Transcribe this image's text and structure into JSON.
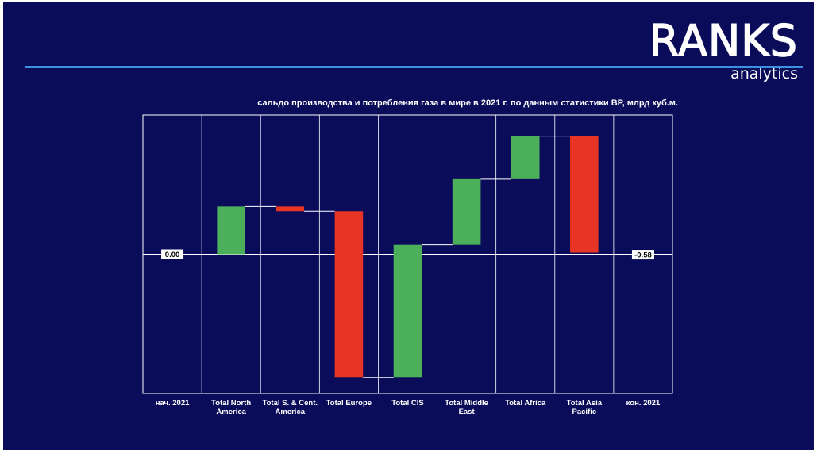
{
  "brand": {
    "name": "RANKS",
    "tagline": "analytics",
    "accent_color": "#3d8fe0",
    "background_color": "#0a0c5a"
  },
  "chart_data": {
    "type": "waterfall",
    "title": "сальдо производства и потребления газа в мире в 2021 г. по данным статистики BP, млрд куб.м.",
    "xlabel": "",
    "ylabel": "",
    "categories": [
      "нач. 2021",
      "Total North America",
      "Total S. & Cent. America",
      "Total Europe",
      "Total CIS",
      "Total Middle East",
      "Total Africa",
      "Total Asia Pacific",
      "кон. 2021"
    ],
    "category_lines": [
      [
        "нач. 2021"
      ],
      [
        "Total North",
        "America"
      ],
      [
        "Total S. & Cent.",
        "America"
      ],
      [
        "Total Europe"
      ],
      [
        "Total CIS"
      ],
      [
        "Total Middle",
        "East"
      ],
      [
        "Total Africa"
      ],
      [
        "Total Asia",
        "Pacific"
      ],
      [
        "кон. 2021"
      ]
    ],
    "deltas": [
      null,
      61,
      -6,
      -213,
      170,
      84,
      55,
      -149,
      null
    ],
    "totals": [
      0.0,
      null,
      null,
      null,
      null,
      null,
      null,
      null,
      -0.58
    ],
    "total_labels": [
      "0.00",
      "-0.58"
    ],
    "ylim": [
      -178,
      178
    ],
    "grid": true,
    "colors": {
      "increase": "#4caf5a",
      "decrease": "#e83424",
      "grid": "#ffffff",
      "connector": "#ffffff",
      "label_box": "#ffffff"
    }
  }
}
